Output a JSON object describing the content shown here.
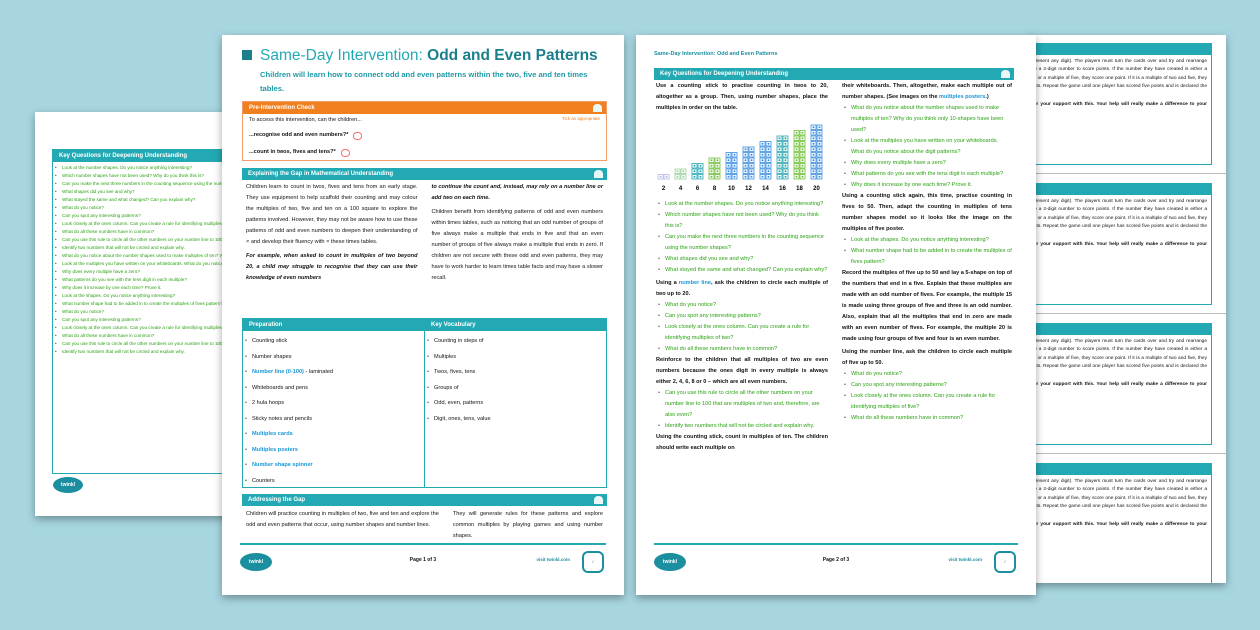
{
  "colors": {
    "background": "#a7d6e0",
    "teal": "#23a9b3",
    "orange": "#f07f1e",
    "question_green": "#2aa212",
    "link_blue": "#1996d8"
  },
  "page1": {
    "title_light": "Same-Day Intervention: ",
    "title_bold": "Odd and Even Patterns",
    "subtitle": "Children will learn how to connect odd and even patterns within the two, five and ten times tables.",
    "pre_check": {
      "header": "Pre-Intervention Check",
      "intro": "To access this intervention, can the children...",
      "tick_note": "Tick as appropriate",
      "items": [
        "...recognise odd and even numbers?*",
        "...count in twos, fives and tens?*"
      ]
    },
    "explaining": {
      "header": "Explaining the Gap in Mathematical Understanding",
      "col1": "Children learn to count in twos, fives and tens from an early stage. They use equipment to help scaffold their counting and may colour the multiples of two, five and ten on a 100 square to explore the patterns involved. However, they may not be aware how to use these patterns of odd and even numbers to deepen their understanding of × and develop their fluency with × these times tables.",
      "col1_italic": "For example, when asked to count in multiples of two beyond 20, a child may struggle to recognise that they can use their knowledge of even numbers",
      "col2_italic": "to continue the count and, instead, may rely on a number line or add two on each time.",
      "col2": "Children benefit from identifying patterns of odd and even numbers within times tables, such as noticing that an odd number of groups of five always make a multiple that ends in five and that an even number of groups of five always make a multiple that ends in zero. If children are not secure with these odd and even patterns, they may have to work harder to learn times table facts and may have a slower recall."
    },
    "preparation": {
      "header": "Preparation",
      "items": [
        {
          "text": "Counting stick",
          "link": false
        },
        {
          "text": "Number shapes",
          "link": false
        },
        {
          "text": "Number line (0-100)",
          "suffix": " - laminated",
          "link": true
        },
        {
          "text": "Whiteboards and pens",
          "link": false
        },
        {
          "text": "2 hula hoops",
          "link": false
        },
        {
          "text": "Sticky notes and pencils",
          "link": false
        },
        {
          "text": "Multiples cards",
          "link": true
        },
        {
          "text": "Multiples posters",
          "link": true
        },
        {
          "text": "Number shape spinner",
          "link": true
        },
        {
          "text": "Counters",
          "link": false
        }
      ]
    },
    "vocabulary": {
      "header": "Key Vocabulary",
      "items": [
        "Counting in steps of",
        "Multiples",
        "Twos, fives, tens",
        "Groups of",
        "Odd, even, patterns",
        "Digit, ones, tens, value"
      ]
    },
    "addressing": {
      "header": "Addressing the Gap",
      "col1": "Children will practice counting in multiples of two, five and ten and explore the odd and even patterns that occur, using number shapes and number lines.",
      "col2": "They will generate rules for these patterns and explore common multiples by playing games and using number shapes."
    },
    "footer": {
      "page": "Page 1 of 3",
      "visit": "visit twinkl.com",
      "logo": "twinkl"
    }
  },
  "page2": {
    "running_title": "Same-Day Intervention: Odd and Even Patterns",
    "header": "Key Questions for Deepening Understanding",
    "intro": "Use a counting stick to practise counting in twos to 20, altogether as a group. Then, using number shapes, place the multiples in order on the table.",
    "number_shapes": [
      2,
      4,
      6,
      8,
      10,
      12,
      14,
      16,
      18,
      20
    ],
    "q1": [
      "Look at the number shapes. Do you notice anything interesting?",
      "Which number shapes have not been used? Why do you think this is?",
      "Can you make the next three numbers in the counting sequence using the number shapes?",
      "What shapes did you see and why?",
      "What stayed the same and what changed? Can you explain why?"
    ],
    "numline_pre": "Using a ",
    "numline_link": "number line",
    "numline_post": ", ask the children to circle each multiple of two up to 20.",
    "q2": [
      "What do you notice?",
      "Can you spot any interesting patterns?",
      "Look closely at the ones column. Can you create a rule for identifying multiples of two?",
      "What do all these numbers have in common?"
    ],
    "reinforce": "Reinforce to the children that all multiples of two are even numbers because the ones digit in every multiple is always either 2, 4, 6, 8 or 0 – which are all even numbers.",
    "q3": [
      "Can you use this rule to circle all the other numbers on your number line to 100 that are multiples of two and, therefore, are also even?",
      "Identify two numbers that will not be circled and explain why."
    ],
    "tens": "Using the counting stick, count in multiples of ten. The children should write each multiple on",
    "tens_cont_pre": "their whiteboards. Then, altogether, make each multiple out of number shapes. (See images on the ",
    "tens_link": "multiples posters",
    "tens_cont_post": ".)",
    "q4": [
      "What do you notice about the number shapes used to make multiples of ten? Why do you think only 10-shapes have been used?",
      "Look at the multiples you have written on your whiteboards. What do you notice about the digit patterns?",
      "Why does every multiple have a zero?",
      "What patterns do you see with the tens digit in each multiple?",
      "Why does it increase by one each time? Prove it."
    ],
    "fives": "Using a counting stick again, this time, practise counting in fives to 50. Then, adapt the counting in multiples of tens number shapes model so it looks like the image on the multiples of five poster.",
    "q5": [
      "Look at the shapes. Do you notice anything interesting?",
      "What number shape had to be added in to create the multiples of fives pattern?"
    ],
    "record": "Record the multiples of five up to 50 and lay a 5-shape on top of the numbers that end in a five. Explain that these multiples are made with an odd number of fives. For example, the multiple 15 is made using three groups of five and three is an odd number. Also, explain that all the multiples that end in zero are made with an even number of fives. For example, the multiple 20 is made using four groups of five and four is an even number.",
    "numline5": "Using the number line, ask the children to circle each multiple of five up to 50.",
    "q6": [
      "What do you notice?",
      "Can you spot any interesting patterns?",
      "Look closely at the ones column. Can you create a rule for identifying multiples of five?",
      "What do all these numbers have in common?"
    ],
    "footer": {
      "page": "Page 2 of 3",
      "visit": "visit twinkl.com",
      "logo": "twinkl"
    }
  },
  "back_left": {
    "header": "Key Questions for Deepening Understanding",
    "items": [
      "Look at the number shapes. Do you notice anything interesting?",
      "Which number shapes have not been used? Why do you think this is?",
      "Can you make the next three numbers in the counting sequence using the number shapes?",
      "What shapes did you see and why?",
      "What stayed the same and what changed? Can you explain why?",
      "What do you notice?",
      "Can you spot any interesting patterns?",
      "Look closely at the ones column. Can you create a rule for identifying multiples of two?",
      "What do all these numbers have in common?",
      "Can you use this rule to circle all the other numbers on your number line to 100 that are multiples of two and, therefore, are also even?",
      "Identify two numbers that will not be circled and explain why.",
      "What do you notice about the number shapes used to make multiples of ten? Why do you think only 10-shapes have been used?",
      "Look at the multiples you have written on your whiteboards. What do you notice about the digit patterns?",
      "Why does every multiple have a zero?",
      "What patterns do you see with the tens digit in each multiple?",
      "Why does it increase by one each time? Prove it.",
      "Look at the shapes. Do you notice anything interesting?",
      "What number shape had to be added in to create the multiples of fives pattern?",
      "What do you notice?",
      "Can you spot any interesting patterns?",
      "Look closely at the ones column. Can you create a rule for identifying multiples of five?",
      "What do all these numbers have in common?",
      "Can you use this rule to circle all the other numbers on your number line to 100 that are multiples of five?",
      "Identify two numbers that will not be circled and explain why."
    ],
    "logo": "twinkl"
  },
  "back_right": {
    "game_text": "game can represent any digit). The players must turn the cards over and try and rearrange them to create a 2-digit number to score points. If the number they have created is either a multiple of two or a multiple of five, they score one point. If it is a multiple of two and five, they score two points. Repeat the game until one player has scored five points and is declared the winner.",
    "thanks": "Thank you for your support with this. Your help will really make a difference to your child.",
    "sections": 4
  }
}
